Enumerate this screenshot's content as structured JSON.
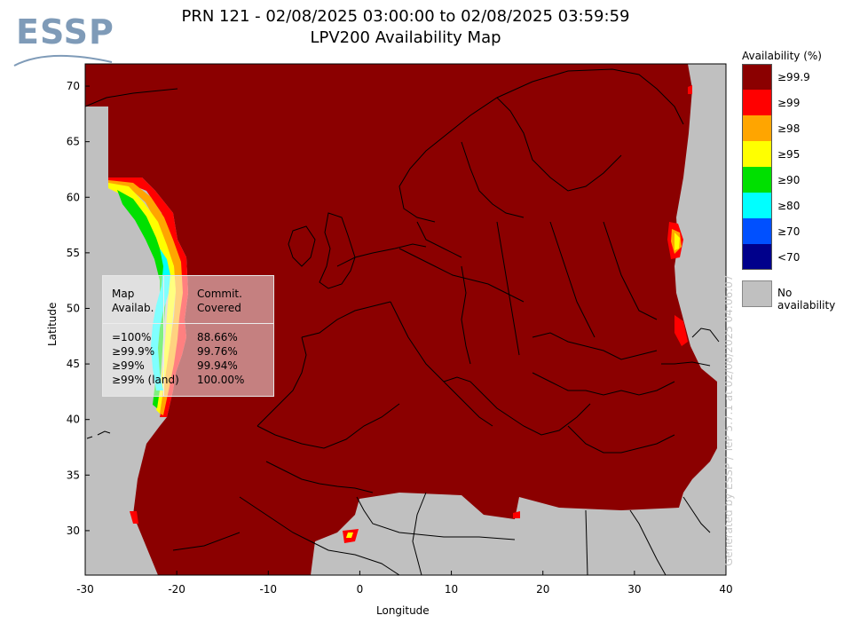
{
  "header": {
    "title_line1": "PRN 121 - 02/08/2025 03:00:00 to 02/08/2025 03:59:59",
    "title_line2": "LPV200 Availability Map"
  },
  "logo": {
    "text": "ESSP"
  },
  "axes": {
    "xlabel": "Longitude",
    "ylabel": "Latitude",
    "x_ticks": [
      "-30",
      "-20",
      "-10",
      "0",
      "10",
      "20",
      "30",
      "40"
    ],
    "y_ticks": [
      "70",
      "65",
      "60",
      "55",
      "50",
      "45",
      "40",
      "35",
      "30"
    ],
    "xlim": [
      -30,
      40
    ],
    "ylim": [
      26,
      72
    ]
  },
  "legend": {
    "title": "Availability (%)",
    "items": [
      {
        "label": "≥99.9",
        "color": "#8b0000"
      },
      {
        "label": "≥99",
        "color": "#ff0000"
      },
      {
        "label": "≥98",
        "color": "#ffa500"
      },
      {
        "label": "≥95",
        "color": "#ffff00"
      },
      {
        "label": "≥90",
        "color": "#00e000"
      },
      {
        "label": "≥80",
        "color": "#00ffff"
      },
      {
        "label": "≥70",
        "color": "#0050ff"
      },
      {
        "label": "<70",
        "color": "#00008b"
      }
    ],
    "no_availability": {
      "label": "No availability",
      "color": "#c0c0c0"
    }
  },
  "stats": {
    "header_left": "Map\nAvailab.",
    "header_right": "Commit.\nCovered",
    "rows": [
      {
        "label": "=100%",
        "value": "88.66%"
      },
      {
        "label": "≥99.9%",
        "value": "99.76%"
      },
      {
        "label": "≥99%",
        "value": "99.94%"
      },
      {
        "label": "≥99% (land)",
        "value": "100.00%"
      }
    ]
  },
  "credit": "Generated by ESSP / TeP 5.7.1 at 02/08/2025 04:06:07"
}
